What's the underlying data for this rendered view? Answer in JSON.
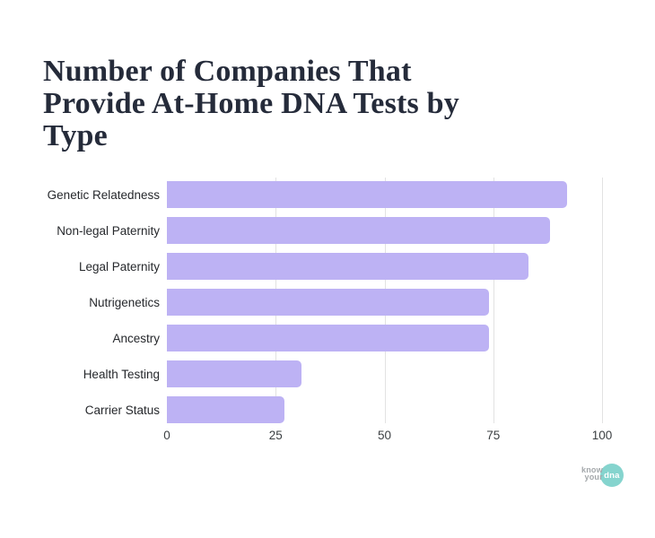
{
  "title": {
    "text": "Number of Companies That Provide At-Home DNA Tests by Type",
    "lines": [
      "Number of Companies That",
      "Provide At-Home DNA Tests by",
      "Type"
    ],
    "color": "#252b3a"
  },
  "chart_data": {
    "type": "bar",
    "orientation": "horizontal",
    "title": "Number of Companies That Provide At-Home DNA Tests by Type",
    "categories": [
      "Genetic Relatedness",
      "Non-legal Paternity",
      "Legal Paternity",
      "Nutrigenetics",
      "Ancestry",
      "Health Testing",
      "Carrier Status"
    ],
    "values": [
      92,
      88,
      83,
      74,
      74,
      31,
      27
    ],
    "xlabel": "",
    "ylabel": "",
    "xlim": [
      0,
      100
    ],
    "x_ticks": [
      0,
      25,
      50,
      75,
      100
    ],
    "grid": "vertical",
    "legend": "none",
    "bar_color": "#bdb2f4",
    "gridline_color": "#e2e2e2"
  },
  "logo": {
    "word1": "know",
    "word2": "your",
    "circle_text": "dna",
    "circle_color": "#85d4ce",
    "text_color": "#a4a8ab"
  }
}
